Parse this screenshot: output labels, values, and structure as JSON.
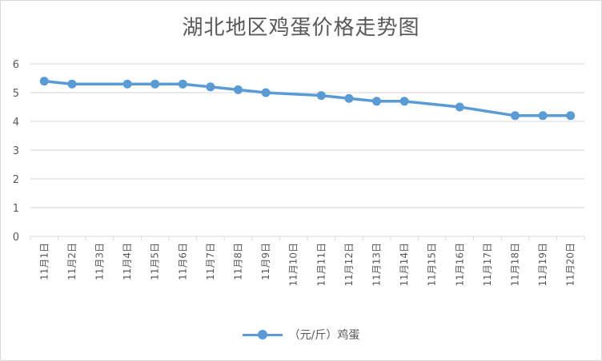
{
  "chart_data": {
    "type": "line",
    "title": "湖北地区鸡蛋价格走势图",
    "categories": [
      "11月1日",
      "11月2日",
      "11月3日",
      "11月4日",
      "11月5日",
      "11月6日",
      "11月7日",
      "11月8日",
      "11月9日",
      "11月10日",
      "11月11日",
      "11月12日",
      "11月13日",
      "11月14日",
      "11月15日",
      "11月16日",
      "11月17日",
      "11月18日",
      "11月19日",
      "11月20日"
    ],
    "series": [
      {
        "name": "（元/斤）鸡蛋",
        "color": "#5b9bd5",
        "values": [
          5.4,
          5.3,
          null,
          5.3,
          5.3,
          5.3,
          5.2,
          5.1,
          5.0,
          null,
          4.9,
          4.8,
          4.7,
          4.7,
          null,
          4.5,
          null,
          4.2,
          4.2,
          4.2
        ]
      }
    ],
    "yticks": [
      0,
      1,
      2,
      3,
      4,
      5,
      6
    ],
    "ylim": [
      0,
      6
    ],
    "grid": true,
    "legend_position": "bottom"
  }
}
